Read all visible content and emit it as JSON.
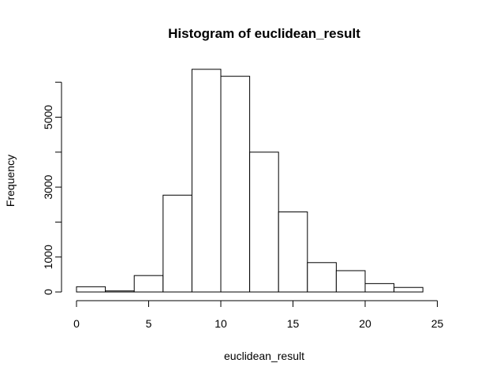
{
  "chart_data": {
    "type": "bar",
    "title": "Histogram of euclidean_result",
    "xlabel": "euclidean_result",
    "ylabel": "Frequency",
    "bin_edges": [
      0,
      2,
      4,
      6,
      8,
      10,
      12,
      14,
      16,
      18,
      20,
      22,
      24
    ],
    "values": [
      150,
      30,
      470,
      2770,
      6370,
      6170,
      4000,
      2290,
      840,
      610,
      240,
      130
    ],
    "xlim": [
      0,
      26
    ],
    "ylim": [
      0,
      6000
    ],
    "x_ticks": [
      0,
      5,
      10,
      15,
      20,
      25
    ],
    "y_ticks": [
      0,
      1000,
      3000,
      5000
    ],
    "grid": false,
    "colors": {
      "bar_fill": "#ffffff",
      "bar_stroke": "#000000",
      "axis": "#000000"
    }
  }
}
